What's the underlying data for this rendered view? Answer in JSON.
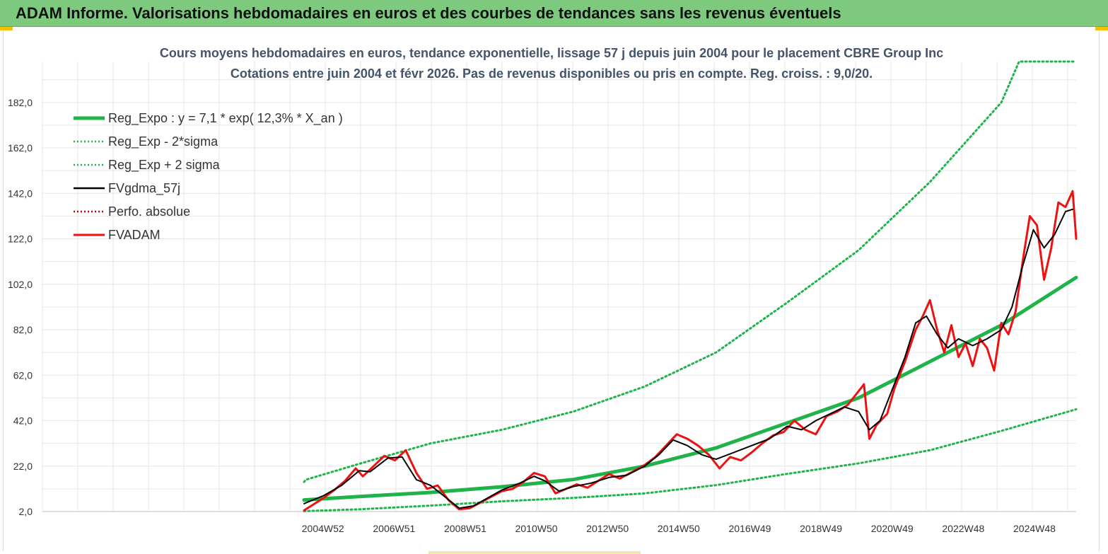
{
  "banner": {
    "title": "ADAM Informe. Valorisations hebdomadaires en euros et des courbes de tendances sans les revenus éventuels"
  },
  "colors": {
    "banner_bg": "#7dc97e",
    "trend": "#1fb34a",
    "fvgdma": "#000000",
    "fvadam": "#ee1111",
    "perfo": "#cc0000",
    "title_text": "#44546a"
  },
  "chart_data": {
    "type": "line",
    "title": "Cours moyens hebdomadaires en euros, tendance exponentielle, lissage 57 j depuis juin 2004 pour le placement CBRE Group Inc",
    "subtitle": "Cotations entre juin 2004 et févr 2026. Pas de revenus disponibles ou pris en compte. Reg. croiss. : 9,0/20.",
    "xlabel": "",
    "ylabel": "",
    "ylim": [
      2,
      200
    ],
    "y_ticks": [
      "2,0",
      "22,0",
      "42,0",
      "62,0",
      "82,0",
      "102,0",
      "122,0",
      "142,0",
      "162,0",
      "182,0"
    ],
    "x_ticks": [
      "2004W52",
      "2006W51",
      "2008W51",
      "2010W50",
      "2012W50",
      "2014W50",
      "2016W49",
      "2018W49",
      "2020W49",
      "2022W48",
      "2024W48"
    ],
    "x_range": [
      2004.45,
      2026.1
    ],
    "grid": true,
    "legend_position": "top-left",
    "series": [
      {
        "name": "Reg_Expo : y = 7,1 * exp( 12,3% *  X_an )",
        "style": "solid-thick",
        "color": "#1fb34a",
        "points": [
          [
            2004.45,
            7.1
          ],
          [
            2006,
            8.6
          ],
          [
            2008,
            10.4
          ],
          [
            2010,
            12.9
          ],
          [
            2012,
            16.1
          ],
          [
            2014,
            22.0
          ],
          [
            2016,
            30.0
          ],
          [
            2018,
            41.0
          ],
          [
            2020,
            52.0
          ],
          [
            2022,
            68.0
          ],
          [
            2024,
            84.0
          ],
          [
            2026.1,
            105.0
          ]
        ]
      },
      {
        "name": "Reg_Exp - 2*sigma",
        "style": "dotted",
        "color": "#1fb34a",
        "points": [
          [
            2004.45,
            2.2
          ],
          [
            2006,
            3.0
          ],
          [
            2008,
            4.6
          ],
          [
            2010,
            6.5
          ],
          [
            2012,
            8.0
          ],
          [
            2014,
            10.0
          ],
          [
            2016,
            13.6
          ],
          [
            2018,
            18.6
          ],
          [
            2020,
            23.2
          ],
          [
            2022,
            29.0
          ],
          [
            2024,
            37.5
          ],
          [
            2026.1,
            47.0
          ]
        ]
      },
      {
        "name": "Reg_Exp + 2 sigma",
        "style": "dotted",
        "color": "#1fb34a",
        "points": [
          [
            2004.45,
            15.0
          ],
          [
            2004.5,
            16.0
          ],
          [
            2006,
            23.0
          ],
          [
            2008,
            32.0
          ],
          [
            2010,
            38.0
          ],
          [
            2012,
            46.0
          ],
          [
            2014,
            57.0
          ],
          [
            2016,
            72.0
          ],
          [
            2018,
            94.0
          ],
          [
            2020,
            117.0
          ],
          [
            2022,
            147.0
          ],
          [
            2024,
            182.0
          ],
          [
            2024.5,
            200.0
          ],
          [
            2026.1,
            200.0
          ]
        ]
      },
      {
        "name": "FVgdma_57j",
        "style": "solid",
        "color": "#000000",
        "points": [
          [
            2004.45,
            5.5
          ],
          [
            2005,
            9.0
          ],
          [
            2005.5,
            13.5
          ],
          [
            2006,
            20.0
          ],
          [
            2006.3,
            19.5
          ],
          [
            2006.8,
            25.5
          ],
          [
            2007.2,
            26.0
          ],
          [
            2007.6,
            16.0
          ],
          [
            2008,
            13.5
          ],
          [
            2008.4,
            8.5
          ],
          [
            2008.8,
            3.5
          ],
          [
            2009.2,
            4.5
          ],
          [
            2009.6,
            8.0
          ],
          [
            2010,
            11.5
          ],
          [
            2010.5,
            14.5
          ],
          [
            2010.9,
            17.5
          ],
          [
            2011.2,
            15.5
          ],
          [
            2011.6,
            11.0
          ],
          [
            2012,
            13.0
          ],
          [
            2012.5,
            14.5
          ],
          [
            2013,
            17.0
          ],
          [
            2013.5,
            18.0
          ],
          [
            2014,
            22.0
          ],
          [
            2014.4,
            27.0
          ],
          [
            2014.8,
            33.5
          ],
          [
            2015.2,
            31.0
          ],
          [
            2015.6,
            27.0
          ],
          [
            2016,
            25.0
          ],
          [
            2016.5,
            28.0
          ],
          [
            2017,
            31.0
          ],
          [
            2017.5,
            34.0
          ],
          [
            2018,
            39.5
          ],
          [
            2018.4,
            38.0
          ],
          [
            2018.8,
            42.0
          ],
          [
            2019.2,
            45.0
          ],
          [
            2019.6,
            48.0
          ],
          [
            2020,
            46.0
          ],
          [
            2020.3,
            38.0
          ],
          [
            2020.6,
            42.0
          ],
          [
            2021,
            58.0
          ],
          [
            2021.3,
            70.0
          ],
          [
            2021.6,
            85.0
          ],
          [
            2021.9,
            88.0
          ],
          [
            2022.2,
            80.0
          ],
          [
            2022.5,
            74.0
          ],
          [
            2022.8,
            78.0
          ],
          [
            2023.2,
            75.0
          ],
          [
            2023.6,
            78.0
          ],
          [
            2024,
            82.0
          ],
          [
            2024.3,
            92.0
          ],
          [
            2024.6,
            110.0
          ],
          [
            2024.9,
            126.0
          ],
          [
            2025.2,
            118.0
          ],
          [
            2025.5,
            124.0
          ],
          [
            2025.8,
            134.0
          ],
          [
            2026.0,
            135.0
          ]
        ]
      },
      {
        "name": "Perfo. absolue",
        "style": "dotted",
        "color": "#cc0000",
        "points": []
      },
      {
        "name": "FVADAM",
        "style": "solid-thick",
        "color": "#ee1111",
        "points": [
          [
            2004.45,
            2.5
          ],
          [
            2004.7,
            5.0
          ],
          [
            2005,
            8.0
          ],
          [
            2005.3,
            11.5
          ],
          [
            2005.6,
            15.5
          ],
          [
            2005.9,
            21.0
          ],
          [
            2006.1,
            17.5
          ],
          [
            2006.4,
            22.0
          ],
          [
            2006.7,
            26.5
          ],
          [
            2007,
            24.5
          ],
          [
            2007.3,
            29.0
          ],
          [
            2007.6,
            19.0
          ],
          [
            2007.9,
            12.0
          ],
          [
            2008.2,
            13.5
          ],
          [
            2008.5,
            7.0
          ],
          [
            2008.8,
            3.0
          ],
          [
            2009.1,
            3.5
          ],
          [
            2009.4,
            6.0
          ],
          [
            2009.7,
            8.5
          ],
          [
            2010,
            11.0
          ],
          [
            2010.3,
            12.0
          ],
          [
            2010.6,
            15.0
          ],
          [
            2010.9,
            19.0
          ],
          [
            2011.2,
            17.5
          ],
          [
            2011.5,
            10.0
          ],
          [
            2011.8,
            12.0
          ],
          [
            2012.1,
            14.0
          ],
          [
            2012.4,
            12.5
          ],
          [
            2012.7,
            15.5
          ],
          [
            2013,
            18.5
          ],
          [
            2013.3,
            16.5
          ],
          [
            2013.6,
            19.0
          ],
          [
            2014,
            22.5
          ],
          [
            2014.3,
            26.0
          ],
          [
            2014.6,
            31.0
          ],
          [
            2014.9,
            36.0
          ],
          [
            2015.2,
            34.0
          ],
          [
            2015.5,
            31.0
          ],
          [
            2015.8,
            27.0
          ],
          [
            2016.1,
            21.0
          ],
          [
            2016.4,
            26.0
          ],
          [
            2016.7,
            24.5
          ],
          [
            2017,
            28.0
          ],
          [
            2017.3,
            32.0
          ],
          [
            2017.6,
            35.5
          ],
          [
            2017.9,
            37.0
          ],
          [
            2018.2,
            42.0
          ],
          [
            2018.5,
            38.0
          ],
          [
            2018.8,
            36.0
          ],
          [
            2019.1,
            44.0
          ],
          [
            2019.4,
            46.0
          ],
          [
            2019.7,
            49.0
          ],
          [
            2020,
            55.0
          ],
          [
            2020.15,
            58.0
          ],
          [
            2020.3,
            34.0
          ],
          [
            2020.5,
            40.0
          ],
          [
            2020.8,
            45.0
          ],
          [
            2021,
            56.0
          ],
          [
            2021.3,
            68.0
          ],
          [
            2021.6,
            82.0
          ],
          [
            2021.8,
            88.0
          ],
          [
            2022,
            95.0
          ],
          [
            2022.2,
            82.0
          ],
          [
            2022.4,
            72.0
          ],
          [
            2022.6,
            84.0
          ],
          [
            2022.8,
            70.0
          ],
          [
            2023,
            76.0
          ],
          [
            2023.2,
            66.0
          ],
          [
            2023.4,
            78.0
          ],
          [
            2023.6,
            74.0
          ],
          [
            2023.8,
            64.0
          ],
          [
            2024,
            85.0
          ],
          [
            2024.2,
            80.0
          ],
          [
            2024.4,
            90.0
          ],
          [
            2024.6,
            112.0
          ],
          [
            2024.8,
            132.0
          ],
          [
            2025,
            128.0
          ],
          [
            2025.2,
            104.0
          ],
          [
            2025.4,
            118.0
          ],
          [
            2025.6,
            138.0
          ],
          [
            2025.8,
            136.0
          ],
          [
            2026.0,
            143.0
          ],
          [
            2026.1,
            122.0
          ]
        ]
      }
    ]
  }
}
